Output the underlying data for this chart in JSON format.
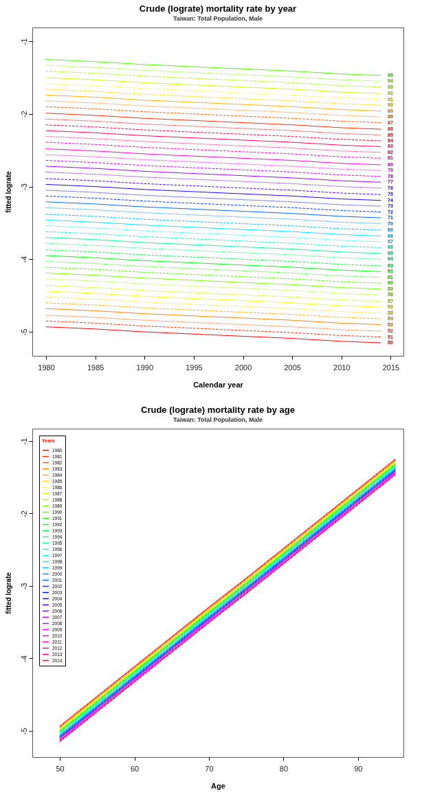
{
  "chart_data": [
    {
      "type": "line",
      "title": "Crude (lograte) mortality rate by year",
      "subtitle": "Taiwan: Total Population, Male",
      "xlabel": "Calendar year",
      "ylabel": "fitted lograte",
      "legend": false,
      "xlim": [
        1978.6,
        2016.3
      ],
      "ylim": [
        -5.33,
        -0.81
      ],
      "xticks": [
        1980,
        1985,
        1990,
        1995,
        2000,
        2005,
        2010,
        2015
      ],
      "yticks": [
        -5,
        -4,
        -3,
        -2,
        -1
      ],
      "x": [
        1980,
        1985,
        1990,
        1995,
        2000,
        2005,
        2010,
        2014
      ],
      "series": [
        {
          "name": "50",
          "color": "#ff0000",
          "line_style": "solid",
          "values": [
            -4.93,
            -4.96,
            -5.0,
            -5.03,
            -5.06,
            -5.09,
            -5.13,
            -5.15
          ]
        },
        {
          "name": "51",
          "color": "#ff2c00",
          "line_style": "dashed",
          "values": [
            -4.85,
            -4.88,
            -4.92,
            -4.95,
            -4.98,
            -5.01,
            -5.05,
            -5.07
          ]
        },
        {
          "name": "52",
          "color": "#ff5700",
          "line_style": "dotted",
          "values": [
            -4.77,
            -4.8,
            -4.84,
            -4.87,
            -4.9,
            -4.93,
            -4.97,
            -4.99
          ]
        },
        {
          "name": "53",
          "color": "#ff8300",
          "line_style": "solid",
          "values": [
            -4.68,
            -4.71,
            -4.75,
            -4.78,
            -4.81,
            -4.84,
            -4.88,
            -4.9
          ]
        },
        {
          "name": "54",
          "color": "#ffaf00",
          "line_style": "dashed",
          "values": [
            -4.6,
            -4.63,
            -4.67,
            -4.7,
            -4.73,
            -4.76,
            -4.8,
            -4.82
          ]
        },
        {
          "name": "55",
          "color": "#ffda00",
          "line_style": "dotted",
          "values": [
            -4.52,
            -4.55,
            -4.59,
            -4.62,
            -4.65,
            -4.68,
            -4.72,
            -4.74
          ]
        },
        {
          "name": "56",
          "color": "#f8ff00",
          "line_style": "solid",
          "values": [
            -4.44,
            -4.47,
            -4.51,
            -4.54,
            -4.57,
            -4.6,
            -4.64,
            -4.66
          ]
        },
        {
          "name": "57",
          "color": "#ccff00",
          "line_style": "dashed",
          "values": [
            -4.36,
            -4.39,
            -4.43,
            -4.46,
            -4.49,
            -4.52,
            -4.56,
            -4.58
          ]
        },
        {
          "name": "58",
          "color": "#a0ff00",
          "line_style": "dotted",
          "values": [
            -4.27,
            -4.3,
            -4.34,
            -4.37,
            -4.4,
            -4.43,
            -4.47,
            -4.49
          ]
        },
        {
          "name": "59",
          "color": "#74ff00",
          "line_style": "solid",
          "values": [
            -4.19,
            -4.22,
            -4.26,
            -4.29,
            -4.32,
            -4.35,
            -4.39,
            -4.41
          ]
        },
        {
          "name": "60",
          "color": "#49ff00",
          "line_style": "dashed",
          "values": [
            -4.11,
            -4.14,
            -4.18,
            -4.21,
            -4.24,
            -4.27,
            -4.31,
            -4.33
          ]
        },
        {
          "name": "61",
          "color": "#1dff00",
          "line_style": "dotted",
          "values": [
            -4.03,
            -4.06,
            -4.1,
            -4.13,
            -4.16,
            -4.19,
            -4.23,
            -4.25
          ]
        },
        {
          "name": "62",
          "color": "#00ff0e",
          "line_style": "solid",
          "values": [
            -3.95,
            -3.98,
            -4.02,
            -4.05,
            -4.08,
            -4.11,
            -4.15,
            -4.17
          ]
        },
        {
          "name": "63",
          "color": "#00ff3a",
          "line_style": "dashed",
          "values": [
            -3.87,
            -3.9,
            -3.94,
            -3.97,
            -4.0,
            -4.03,
            -4.07,
            -4.09
          ]
        },
        {
          "name": "64",
          "color": "#00ff66",
          "line_style": "dotted",
          "values": [
            -3.78,
            -3.81,
            -3.85,
            -3.88,
            -3.91,
            -3.94,
            -3.98,
            -4.0
          ]
        },
        {
          "name": "65",
          "color": "#00ff91",
          "line_style": "solid",
          "values": [
            -3.7,
            -3.73,
            -3.77,
            -3.8,
            -3.83,
            -3.86,
            -3.9,
            -3.92
          ]
        },
        {
          "name": "66",
          "color": "#00ffbd",
          "line_style": "dashed",
          "values": [
            -3.62,
            -3.65,
            -3.69,
            -3.72,
            -3.75,
            -3.78,
            -3.82,
            -3.84
          ]
        },
        {
          "name": "67",
          "color": "#00ffe9",
          "line_style": "dotted",
          "values": [
            -3.54,
            -3.57,
            -3.61,
            -3.64,
            -3.67,
            -3.7,
            -3.74,
            -3.76
          ]
        },
        {
          "name": "68",
          "color": "#00e9ff",
          "line_style": "solid",
          "values": [
            -3.46,
            -3.49,
            -3.53,
            -3.56,
            -3.59,
            -3.62,
            -3.66,
            -3.68
          ]
        },
        {
          "name": "69",
          "color": "#00bdff",
          "line_style": "dashed",
          "values": [
            -3.38,
            -3.41,
            -3.45,
            -3.48,
            -3.51,
            -3.54,
            -3.58,
            -3.6
          ]
        },
        {
          "name": "70",
          "color": "#0091ff",
          "line_style": "dotted",
          "values": [
            -3.29,
            -3.32,
            -3.36,
            -3.39,
            -3.42,
            -3.45,
            -3.49,
            -3.51
          ]
        },
        {
          "name": "71",
          "color": "#0066ff",
          "line_style": "solid",
          "values": [
            -3.21,
            -3.24,
            -3.28,
            -3.31,
            -3.34,
            -3.37,
            -3.41,
            -3.43
          ]
        },
        {
          "name": "72",
          "color": "#003aff",
          "line_style": "dashed",
          "values": [
            -3.13,
            -3.16,
            -3.2,
            -3.23,
            -3.26,
            -3.29,
            -3.33,
            -3.35
          ]
        },
        {
          "name": "73",
          "color": "#000eff",
          "line_style": "dotted",
          "values": [
            -3.05,
            -3.08,
            -3.12,
            -3.15,
            -3.18,
            -3.21,
            -3.25,
            -3.27
          ]
        },
        {
          "name": "74",
          "color": "#1d00ff",
          "line_style": "solid",
          "values": [
            -2.97,
            -3.0,
            -3.04,
            -3.07,
            -3.1,
            -3.13,
            -3.17,
            -3.19
          ]
        },
        {
          "name": "75",
          "color": "#4900ff",
          "line_style": "dashed",
          "values": [
            -2.89,
            -2.92,
            -2.96,
            -2.99,
            -3.02,
            -3.05,
            -3.09,
            -3.11
          ]
        },
        {
          "name": "76",
          "color": "#7400ff",
          "line_style": "dotted",
          "values": [
            -2.8,
            -2.83,
            -2.87,
            -2.9,
            -2.93,
            -2.96,
            -3.0,
            -3.02
          ]
        },
        {
          "name": "77",
          "color": "#a000ff",
          "line_style": "solid",
          "values": [
            -2.72,
            -2.75,
            -2.79,
            -2.82,
            -2.85,
            -2.88,
            -2.92,
            -2.94
          ]
        },
        {
          "name": "78",
          "color": "#cc00ff",
          "line_style": "dashed",
          "values": [
            -2.64,
            -2.67,
            -2.71,
            -2.74,
            -2.77,
            -2.8,
            -2.84,
            -2.86
          ]
        },
        {
          "name": "79",
          "color": "#f800ff",
          "line_style": "dotted",
          "values": [
            -2.56,
            -2.59,
            -2.63,
            -2.66,
            -2.69,
            -2.72,
            -2.76,
            -2.78
          ]
        },
        {
          "name": "80",
          "color": "#ff00da",
          "line_style": "solid",
          "values": [
            -2.48,
            -2.51,
            -2.55,
            -2.58,
            -2.61,
            -2.64,
            -2.68,
            -2.7
          ]
        },
        {
          "name": "81",
          "color": "#ff00af",
          "line_style": "dashed",
          "values": [
            -2.39,
            -2.42,
            -2.46,
            -2.49,
            -2.52,
            -2.55,
            -2.59,
            -2.61
          ]
        },
        {
          "name": "82",
          "color": "#ff0083",
          "line_style": "dotted",
          "values": [
            -2.31,
            -2.34,
            -2.38,
            -2.41,
            -2.44,
            -2.47,
            -2.51,
            -2.53
          ]
        },
        {
          "name": "83",
          "color": "#ff0057",
          "line_style": "solid",
          "values": [
            -2.23,
            -2.26,
            -2.3,
            -2.33,
            -2.36,
            -2.39,
            -2.43,
            -2.45
          ]
        },
        {
          "name": "84",
          "color": "#ff002c",
          "line_style": "dashed",
          "values": [
            -2.15,
            -2.18,
            -2.22,
            -2.25,
            -2.28,
            -2.31,
            -2.35,
            -2.37
          ]
        },
        {
          "name": "85",
          "color": "#ff0000",
          "line_style": "dotted",
          "values": [
            -2.07,
            -2.1,
            -2.14,
            -2.17,
            -2.2,
            -2.23,
            -2.27,
            -2.29
          ]
        },
        {
          "name": "86",
          "color": "#ff2c00",
          "line_style": "solid",
          "values": [
            -1.99,
            -2.02,
            -2.06,
            -2.09,
            -2.12,
            -2.15,
            -2.19,
            -2.21
          ]
        },
        {
          "name": "87",
          "color": "#ff5700",
          "line_style": "dashed",
          "values": [
            -1.9,
            -1.93,
            -1.97,
            -2.0,
            -2.03,
            -2.06,
            -2.1,
            -2.12
          ]
        },
        {
          "name": "88",
          "color": "#ff8300",
          "line_style": "dotted",
          "values": [
            -1.82,
            -1.85,
            -1.89,
            -1.92,
            -1.95,
            -1.98,
            -2.02,
            -2.04
          ]
        },
        {
          "name": "89",
          "color": "#ffaf00",
          "line_style": "solid",
          "values": [
            -1.74,
            -1.77,
            -1.81,
            -1.84,
            -1.87,
            -1.9,
            -1.94,
            -1.96
          ]
        },
        {
          "name": "90",
          "color": "#ffda00",
          "line_style": "dashed",
          "values": [
            -1.66,
            -1.69,
            -1.73,
            -1.76,
            -1.79,
            -1.82,
            -1.86,
            -1.88
          ]
        },
        {
          "name": "91",
          "color": "#f8ff00",
          "line_style": "dotted",
          "values": [
            -1.58,
            -1.61,
            -1.65,
            -1.68,
            -1.71,
            -1.74,
            -1.78,
            -1.8
          ]
        },
        {
          "name": "92",
          "color": "#ccff00",
          "line_style": "solid",
          "values": [
            -1.5,
            -1.53,
            -1.57,
            -1.6,
            -1.63,
            -1.66,
            -1.7,
            -1.72
          ]
        },
        {
          "name": "93",
          "color": "#a0ff00",
          "line_style": "dashed",
          "values": [
            -1.41,
            -1.44,
            -1.48,
            -1.51,
            -1.54,
            -1.57,
            -1.61,
            -1.63
          ]
        },
        {
          "name": "94",
          "color": "#74ff00",
          "line_style": "dotted",
          "values": [
            -1.33,
            -1.36,
            -1.4,
            -1.43,
            -1.46,
            -1.49,
            -1.53,
            -1.55
          ]
        },
        {
          "name": "95",
          "color": "#49ff00",
          "line_style": "solid",
          "values": [
            -1.25,
            -1.28,
            -1.32,
            -1.35,
            -1.38,
            -1.41,
            -1.45,
            -1.47
          ]
        }
      ]
    },
    {
      "type": "line",
      "title": "Crude (lograte) mortality rate by age",
      "subtitle": "Taiwan: Total Population, Male",
      "xlabel": "Age",
      "ylabel": "fitted lograte",
      "legend": "top left",
      "legend_title": "Years",
      "xlim": [
        46.3,
        96.1
      ],
      "ylim": [
        -5.36,
        -0.83
      ],
      "xticks": [
        50,
        60,
        70,
        80,
        90
      ],
      "yticks": [
        -5,
        -4,
        -3,
        -2,
        -1
      ],
      "x": [
        50,
        55,
        60,
        65,
        70,
        75,
        80,
        85,
        90,
        95
      ],
      "series": [
        {
          "name": "1980",
          "color": "#ff0000",
          "line_style": "solid",
          "values": [
            -4.93,
            -4.52,
            -4.11,
            -3.7,
            -3.29,
            -2.89,
            -2.48,
            -2.07,
            -1.66,
            -1.25
          ]
        },
        {
          "name": "1981",
          "color": "#ff2c00",
          "line_style": "dashed",
          "values": [
            -4.94,
            -4.53,
            -4.12,
            -3.71,
            -3.3,
            -2.9,
            -2.49,
            -2.08,
            -1.67,
            -1.26
          ]
        },
        {
          "name": "1982",
          "color": "#ff5700",
          "line_style": "dotted",
          "values": [
            -4.94,
            -4.53,
            -4.12,
            -3.71,
            -3.3,
            -2.9,
            -2.49,
            -2.08,
            -1.67,
            -1.26
          ]
        },
        {
          "name": "1983",
          "color": "#ff8300",
          "line_style": "solid",
          "values": [
            -4.95,
            -4.54,
            -4.13,
            -3.72,
            -3.31,
            -2.91,
            -2.5,
            -2.09,
            -1.68,
            -1.27
          ]
        },
        {
          "name": "1984",
          "color": "#ffaf00",
          "line_style": "dashed",
          "values": [
            -4.96,
            -4.55,
            -4.14,
            -3.73,
            -3.32,
            -2.92,
            -2.51,
            -2.1,
            -1.69,
            -1.28
          ]
        },
        {
          "name": "1985",
          "color": "#ffda00",
          "line_style": "dotted",
          "values": [
            -4.96,
            -4.55,
            -4.14,
            -3.73,
            -3.32,
            -2.92,
            -2.51,
            -2.1,
            -1.69,
            -1.28
          ]
        },
        {
          "name": "1986",
          "color": "#f8ff00",
          "line_style": "solid",
          "values": [
            -4.97,
            -4.56,
            -4.15,
            -3.74,
            -3.33,
            -2.93,
            -2.52,
            -2.11,
            -1.7,
            -1.29
          ]
        },
        {
          "name": "1987",
          "color": "#ccff00",
          "line_style": "dashed",
          "values": [
            -4.98,
            -4.57,
            -4.16,
            -3.75,
            -3.34,
            -2.94,
            -2.53,
            -2.12,
            -1.71,
            -1.3
          ]
        },
        {
          "name": "1988",
          "color": "#a0ff00",
          "line_style": "dotted",
          "values": [
            -4.98,
            -4.57,
            -4.16,
            -3.75,
            -3.34,
            -2.94,
            -2.53,
            -2.12,
            -1.71,
            -1.3
          ]
        },
        {
          "name": "1989",
          "color": "#74ff00",
          "line_style": "solid",
          "values": [
            -4.99,
            -4.58,
            -4.17,
            -3.76,
            -3.35,
            -2.95,
            -2.54,
            -2.13,
            -1.72,
            -1.31
          ]
        },
        {
          "name": "1990",
          "color": "#49ff00",
          "line_style": "dashed",
          "values": [
            -5.0,
            -4.59,
            -4.18,
            -3.77,
            -3.36,
            -2.96,
            -2.55,
            -2.14,
            -1.73,
            -1.32
          ]
        },
        {
          "name": "1991",
          "color": "#1dff00",
          "line_style": "dotted",
          "values": [
            -5.0,
            -4.59,
            -4.18,
            -3.77,
            -3.36,
            -2.96,
            -2.55,
            -2.14,
            -1.73,
            -1.32
          ]
        },
        {
          "name": "1992",
          "color": "#00ff0e",
          "line_style": "solid",
          "values": [
            -5.01,
            -4.6,
            -4.19,
            -3.78,
            -3.37,
            -2.97,
            -2.56,
            -2.15,
            -1.74,
            -1.33
          ]
        },
        {
          "name": "1993",
          "color": "#00ff3a",
          "line_style": "dashed",
          "values": [
            -5.01,
            -4.6,
            -4.19,
            -3.78,
            -3.37,
            -2.97,
            -2.56,
            -2.15,
            -1.74,
            -1.33
          ]
        },
        {
          "name": "1994",
          "color": "#00ff66",
          "line_style": "dotted",
          "values": [
            -5.02,
            -4.61,
            -4.2,
            -3.79,
            -3.38,
            -2.98,
            -2.57,
            -2.16,
            -1.75,
            -1.34
          ]
        },
        {
          "name": "1995",
          "color": "#00ff91",
          "line_style": "solid",
          "values": [
            -5.03,
            -4.62,
            -4.21,
            -3.8,
            -3.39,
            -2.99,
            -2.58,
            -2.17,
            -1.76,
            -1.35
          ]
        },
        {
          "name": "1996",
          "color": "#00ffbd",
          "line_style": "dashed",
          "values": [
            -5.03,
            -4.62,
            -4.21,
            -3.8,
            -3.39,
            -2.99,
            -2.58,
            -2.17,
            -1.76,
            -1.35
          ]
        },
        {
          "name": "1997",
          "color": "#00ffe9",
          "line_style": "dotted",
          "values": [
            -5.04,
            -4.63,
            -4.22,
            -3.81,
            -3.4,
            -3.0,
            -2.59,
            -2.18,
            -1.77,
            -1.36
          ]
        },
        {
          "name": "1998",
          "color": "#00e9ff",
          "line_style": "solid",
          "values": [
            -5.05,
            -4.64,
            -4.23,
            -3.82,
            -3.41,
            -3.01,
            -2.6,
            -2.19,
            -1.78,
            -1.37
          ]
        },
        {
          "name": "1999",
          "color": "#00bdff",
          "line_style": "dashed",
          "values": [
            -5.05,
            -4.64,
            -4.23,
            -3.82,
            -3.41,
            -3.01,
            -2.6,
            -2.19,
            -1.78,
            -1.37
          ]
        },
        {
          "name": "2000",
          "color": "#0091ff",
          "line_style": "dotted",
          "values": [
            -5.06,
            -4.65,
            -4.24,
            -3.83,
            -3.42,
            -3.02,
            -2.61,
            -2.2,
            -1.79,
            -1.38
          ]
        },
        {
          "name": "2001",
          "color": "#0066ff",
          "line_style": "solid",
          "values": [
            -5.07,
            -4.66,
            -4.25,
            -3.84,
            -3.43,
            -3.03,
            -2.62,
            -2.21,
            -1.8,
            -1.39
          ]
        },
        {
          "name": "2002",
          "color": "#003aff",
          "line_style": "dashed",
          "values": [
            -5.07,
            -4.66,
            -4.25,
            -3.84,
            -3.43,
            -3.03,
            -2.62,
            -2.21,
            -1.8,
            -1.39
          ]
        },
        {
          "name": "2003",
          "color": "#000eff",
          "line_style": "dotted",
          "values": [
            -5.08,
            -4.67,
            -4.26,
            -3.85,
            -3.44,
            -3.04,
            -2.63,
            -2.22,
            -1.81,
            -1.4
          ]
        },
        {
          "name": "2004",
          "color": "#1d00ff",
          "line_style": "solid",
          "values": [
            -5.09,
            -4.68,
            -4.27,
            -3.86,
            -3.45,
            -3.05,
            -2.64,
            -2.23,
            -1.82,
            -1.41
          ]
        },
        {
          "name": "2005",
          "color": "#4900ff",
          "line_style": "dashed",
          "values": [
            -5.09,
            -4.68,
            -4.27,
            -3.86,
            -3.45,
            -3.05,
            -2.64,
            -2.23,
            -1.82,
            -1.41
          ]
        },
        {
          "name": "2006",
          "color": "#7400ff",
          "line_style": "dotted",
          "values": [
            -5.1,
            -4.69,
            -4.28,
            -3.87,
            -3.46,
            -3.06,
            -2.65,
            -2.24,
            -1.83,
            -1.42
          ]
        },
        {
          "name": "2007",
          "color": "#a000ff",
          "line_style": "solid",
          "values": [
            -5.11,
            -4.7,
            -4.29,
            -3.88,
            -3.47,
            -3.07,
            -2.66,
            -2.25,
            -1.84,
            -1.43
          ]
        },
        {
          "name": "2008",
          "color": "#cc00ff",
          "line_style": "dashed",
          "values": [
            -5.11,
            -4.7,
            -4.29,
            -3.88,
            -3.47,
            -3.07,
            -2.66,
            -2.25,
            -1.84,
            -1.43
          ]
        },
        {
          "name": "2009",
          "color": "#f800ff",
          "line_style": "dotted",
          "values": [
            -5.12,
            -4.71,
            -4.3,
            -3.89,
            -3.48,
            -3.08,
            -2.67,
            -2.26,
            -1.85,
            -1.44
          ]
        },
        {
          "name": "2010",
          "color": "#ff00da",
          "line_style": "solid",
          "values": [
            -5.13,
            -4.72,
            -4.31,
            -3.9,
            -3.49,
            -3.09,
            -2.68,
            -2.27,
            -1.86,
            -1.45
          ]
        },
        {
          "name": "2011",
          "color": "#ff00af",
          "line_style": "dashed",
          "values": [
            -5.13,
            -4.72,
            -4.31,
            -3.9,
            -3.49,
            -3.09,
            -2.68,
            -2.27,
            -1.86,
            -1.45
          ]
        },
        {
          "name": "2012",
          "color": "#ff0083",
          "line_style": "dotted",
          "values": [
            -5.14,
            -4.73,
            -4.32,
            -3.91,
            -3.5,
            -3.1,
            -2.69,
            -2.28,
            -1.87,
            -1.46
          ]
        },
        {
          "name": "2013",
          "color": "#ff0057",
          "line_style": "solid",
          "values": [
            -5.14,
            -4.73,
            -4.32,
            -3.91,
            -3.5,
            -3.1,
            -2.69,
            -2.28,
            -1.87,
            -1.46
          ]
        },
        {
          "name": "2014",
          "color": "#ff002c",
          "line_style": "dashed",
          "values": [
            -5.15,
            -4.74,
            -4.33,
            -3.92,
            -3.51,
            -3.11,
            -2.7,
            -2.29,
            -1.88,
            -1.47
          ]
        }
      ]
    }
  ]
}
